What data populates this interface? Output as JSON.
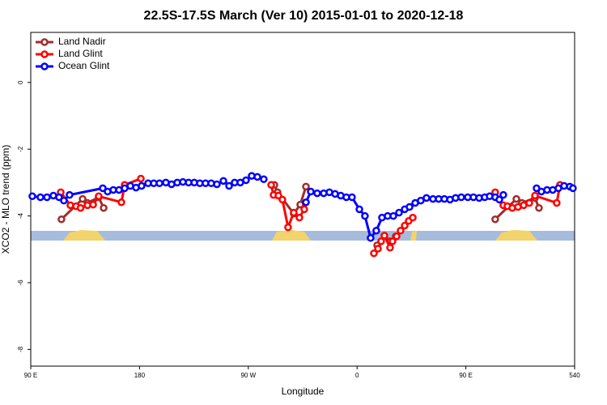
{
  "chart_data": {
    "type": "line",
    "title": "22.5S-17.5S March (Ver 10)   2015-01-01 to 2020-12-18",
    "xlabel": "Longitude",
    "ylabel": "XCO2 - MLO trend (ppm)",
    "xlim": [
      90,
      540
    ],
    "ylim": [
      -8.5,
      1.5
    ],
    "xticks": [
      {
        "value": 90,
        "label": "90 E"
      },
      180,
      {
        "value": 270,
        "label": "90 W"
      },
      {
        "value": 360,
        "label": "0"
      },
      {
        "value": 450,
        "label": "90 E"
      },
      540
    ],
    "yticks": [
      0,
      -2,
      -4,
      -6,
      -8
    ],
    "legend": "top-left",
    "series": [
      {
        "name": "Land Nadir",
        "color": "#a52a2a",
        "x": [
          115.4,
          132.9,
          136.9,
          146.2,
          150.3,
          null,
          291.6,
          294.2,
          307.6,
          313.0,
          317.7,
          null,
          376.6,
          382.6,
          387.3,
          392.0,
          null,
          474.3,
          491.8,
          496.4,
          507.2,
          510.5
        ],
        "values": [
          -4.1,
          -3.49,
          -3.61,
          -3.44,
          -3.76,
          null,
          -3.07,
          -3.29,
          -3.93,
          -3.66,
          -3.12,
          null,
          -4.88,
          -4.59,
          -4.76,
          -4.61,
          null,
          -4.1,
          -3.49,
          -3.61,
          -3.46,
          -3.76
        ]
      },
      {
        "name": "Land Glint",
        "color": "#ff0000",
        "x": [
          114.8,
          122.8,
          127.5,
          131.2,
          136.9,
          141.6,
          146.2,
          165.0,
          167.7,
          181.1,
          null,
          288.9,
          290.9,
          294.9,
          298.2,
          302.9,
          307.6,
          312.3,
          316.3,
          null,
          373.9,
          377.3,
          379.9,
          382.6,
          387.3,
          389.3,
          392.7,
          396.0,
          399.4,
          402.7,
          406.1,
          null,
          474.3,
          481.0,
          484.4,
          488.4,
          493.1,
          497.8,
          502.5,
          507.2,
          525.2,
          527.9
        ],
        "values": [
          -3.29,
          -3.68,
          -3.71,
          -3.76,
          -3.68,
          -3.66,
          -3.41,
          -3.59,
          -3.07,
          -2.88,
          null,
          -3.07,
          -3.37,
          -3.39,
          -3.51,
          -4.34,
          -3.9,
          -4.05,
          -3.8,
          null,
          -5.12,
          -4.98,
          -4.76,
          -4.59,
          -4.95,
          -4.76,
          -4.61,
          -4.44,
          -4.29,
          -4.15,
          -4.05,
          null,
          -3.29,
          -3.68,
          -3.71,
          -3.76,
          -3.73,
          -3.68,
          -3.61,
          -3.39,
          -3.61,
          -3.07
        ]
      },
      {
        "name": "Ocean Glint",
        "color": "#0000ff",
        "x": [
          91.3,
          98.0,
          103.4,
          108.7,
          113.4,
          117.4,
          122.1,
          149.6,
          153.6,
          158.3,
          163.0,
          167.7,
          172.4,
          177.1,
          181.7,
          187.1,
          191.8,
          196.5,
          201.8,
          206.5,
          211.2,
          215.9,
          220.6,
          225.3,
          229.9,
          234.6,
          239.3,
          244.0,
          249.4,
          254.1,
          258.7,
          263.4,
          268.1,
          272.8,
          277.5,
          282.8,
          null,
          317.7,
          321.7,
          327.0,
          332.4,
          337.1,
          341.8,
          346.5,
          351.1,
          355.8,
          361.9,
          366.5,
          371.2,
          375.9,
          380.6,
          385.3,
          390.0,
          394.7,
          399.4,
          403.4,
          408.1,
          412.7,
          417.4,
          422.8,
          427.5,
          432.2,
          436.9,
          441.5,
          446.2,
          451.6,
          456.3,
          461.0,
          465.6,
          469.7,
          474.3,
          477.7,
          481.0,
          null,
          508.5,
          512.5,
          517.2,
          521.9,
          526.6,
          531.3,
          536.0,
          538.6
        ],
        "values": [
          -3.41,
          -3.44,
          -3.44,
          -3.39,
          -3.44,
          -3.54,
          -3.37,
          -3.17,
          -3.27,
          -3.22,
          -3.22,
          -3.17,
          -3.1,
          -3.15,
          -3.1,
          -3.02,
          -3.02,
          -3.02,
          -3.0,
          -3.05,
          -3.0,
          -2.98,
          -3.0,
          -3.0,
          -3.02,
          -3.02,
          -3.02,
          -3.05,
          -2.95,
          -3.1,
          -3.0,
          -3.0,
          -2.93,
          -2.8,
          -2.83,
          -2.9,
          null,
          -3.59,
          -3.27,
          -3.32,
          -3.32,
          -3.29,
          -3.34,
          -3.39,
          -3.44,
          -3.44,
          -3.8,
          -4.0,
          -4.66,
          -4.44,
          -4.05,
          -4.0,
          -4.0,
          -3.9,
          -3.8,
          -3.73,
          -3.61,
          -3.54,
          -3.46,
          -3.49,
          -3.49,
          -3.49,
          -3.51,
          -3.46,
          -3.44,
          -3.44,
          -3.44,
          -3.46,
          -3.44,
          -3.41,
          -3.44,
          -3.51,
          -3.37,
          null,
          -3.17,
          -3.27,
          -3.22,
          -3.22,
          -3.17,
          -3.1,
          -3.12,
          -3.17
        ]
      }
    ]
  }
}
